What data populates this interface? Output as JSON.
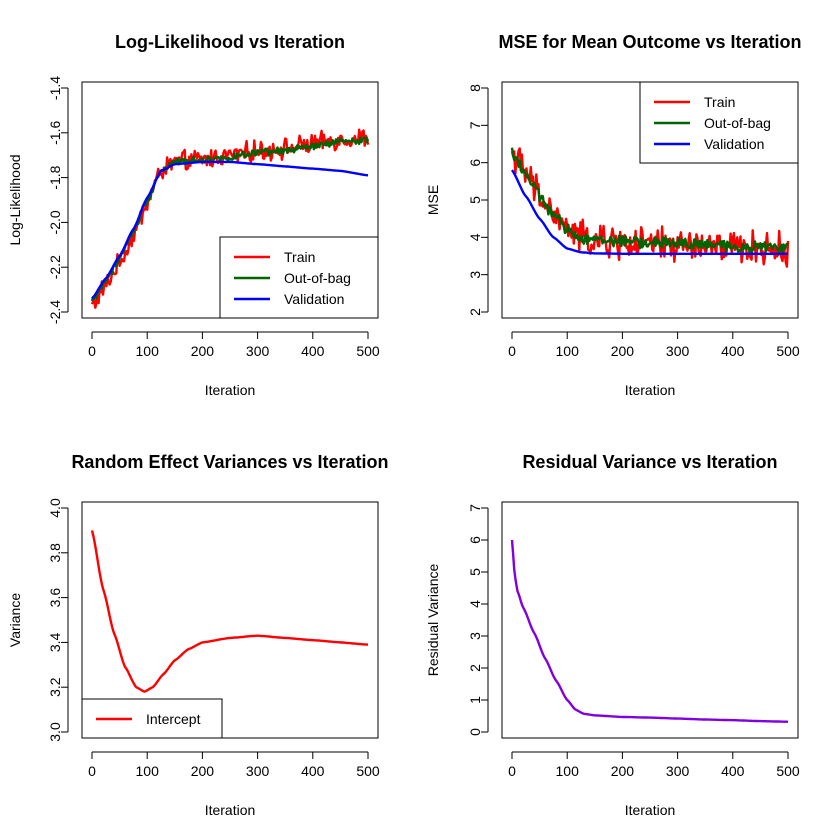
{
  "chart_data": [
    {
      "id": "loglik",
      "type": "line",
      "title": "Log-Likelihood vs Iteration",
      "xlabel": "Iteration",
      "ylabel": "Log-Likelihood",
      "xlim": [
        0,
        500
      ],
      "ylim": [
        -2.4,
        -1.4
      ],
      "xticks": [
        0,
        100,
        200,
        300,
        400,
        500
      ],
      "xtick_labels": [
        "0",
        "100",
        "200",
        "300",
        "400",
        "500"
      ],
      "yticks": [
        -2.4,
        -2.2,
        -2.0,
        -1.8,
        -1.6,
        -1.4
      ],
      "ytick_labels": [
        "-2.4",
        "-2.2",
        "-2.0",
        "-1.8",
        "-1.6",
        "-1.4"
      ],
      "legend": {
        "position": "bottom-right",
        "entries": [
          "Train",
          "Out-of-bag",
          "Validation"
        ]
      },
      "series": [
        {
          "name": "Train",
          "color": "#ff0000",
          "noisy": true,
          "noise": 0.035,
          "x": [
            0,
            25,
            50,
            75,
            100,
            125,
            150,
            200,
            250,
            300,
            350,
            400,
            450,
            500
          ],
          "y": [
            -2.37,
            -2.28,
            -2.18,
            -2.06,
            -1.91,
            -1.77,
            -1.73,
            -1.72,
            -1.7,
            -1.68,
            -1.67,
            -1.65,
            -1.63,
            -1.62
          ]
        },
        {
          "name": "Out-of-bag",
          "color": "#006400",
          "noisy": true,
          "noise": 0.012,
          "x": [
            0,
            25,
            50,
            75,
            100,
            125,
            150,
            200,
            250,
            300,
            350,
            400,
            450,
            500
          ],
          "y": [
            -2.35,
            -2.26,
            -2.16,
            -2.04,
            -1.9,
            -1.77,
            -1.73,
            -1.72,
            -1.71,
            -1.69,
            -1.68,
            -1.66,
            -1.64,
            -1.63
          ]
        },
        {
          "name": "Validation",
          "color": "#0000ff",
          "noisy": false,
          "x": [
            0,
            25,
            50,
            75,
            100,
            125,
            150,
            200,
            250,
            300,
            350,
            400,
            450,
            500
          ],
          "y": [
            -2.34,
            -2.25,
            -2.15,
            -2.03,
            -1.89,
            -1.77,
            -1.74,
            -1.73,
            -1.73,
            -1.74,
            -1.75,
            -1.76,
            -1.77,
            -1.79
          ]
        }
      ]
    },
    {
      "id": "mse",
      "type": "line",
      "title": "MSE for Mean Outcome vs Iteration",
      "xlabel": "Iteration",
      "ylabel": "MSE",
      "xlim": [
        0,
        500
      ],
      "ylim": [
        2,
        8
      ],
      "xticks": [
        0,
        100,
        200,
        300,
        400,
        500
      ],
      "xtick_labels": [
        "0",
        "100",
        "200",
        "300",
        "400",
        "500"
      ],
      "yticks": [
        2,
        3,
        4,
        5,
        6,
        7,
        8
      ],
      "ytick_labels": [
        "2",
        "3",
        "4",
        "5",
        "6",
        "7",
        "8"
      ],
      "legend": {
        "position": "top-right",
        "entries": [
          "Train",
          "Out-of-bag",
          "Validation"
        ]
      },
      "series": [
        {
          "name": "Train",
          "color": "#ff0000",
          "noisy": true,
          "noise": 0.35,
          "x": [
            0,
            25,
            50,
            75,
            100,
            125,
            150,
            200,
            250,
            300,
            350,
            400,
            450,
            500
          ],
          "y": [
            6.3,
            5.7,
            5.1,
            4.6,
            4.2,
            4.0,
            3.9,
            3.85,
            3.8,
            3.8,
            3.75,
            3.7,
            3.7,
            3.65
          ]
        },
        {
          "name": "Out-of-bag",
          "color": "#006400",
          "noisy": true,
          "noise": 0.12,
          "x": [
            0,
            25,
            50,
            75,
            100,
            125,
            150,
            200,
            250,
            300,
            350,
            400,
            450,
            500
          ],
          "y": [
            6.3,
            5.7,
            5.1,
            4.6,
            4.2,
            4.0,
            3.95,
            3.9,
            3.85,
            3.85,
            3.8,
            3.75,
            3.75,
            3.72
          ]
        },
        {
          "name": "Validation",
          "color": "#0000ff",
          "noisy": false,
          "x": [
            0,
            25,
            50,
            75,
            100,
            125,
            150,
            200,
            250,
            300,
            350,
            400,
            450,
            500
          ],
          "y": [
            5.8,
            5.1,
            4.5,
            4.0,
            3.7,
            3.6,
            3.57,
            3.56,
            3.56,
            3.56,
            3.56,
            3.56,
            3.56,
            3.56
          ]
        }
      ]
    },
    {
      "id": "revar",
      "type": "line",
      "title": "Random Effect Variances vs Iteration",
      "xlabel": "Iteration",
      "ylabel": "Variance",
      "xlim": [
        0,
        500
      ],
      "ylim": [
        3.0,
        4.0
      ],
      "xticks": [
        0,
        100,
        200,
        300,
        400,
        500
      ],
      "xtick_labels": [
        "0",
        "100",
        "200",
        "300",
        "400",
        "500"
      ],
      "yticks": [
        3.0,
        3.2,
        3.4,
        3.6,
        3.8,
        4.0
      ],
      "ytick_labels": [
        "3.0",
        "3.2",
        "3.4",
        "3.6",
        "3.8",
        "4.0"
      ],
      "legend": {
        "position": "bottom-left",
        "entries": [
          "Intercept"
        ]
      },
      "series": [
        {
          "name": "Intercept",
          "color": "#ff0000",
          "noisy": false,
          "x": [
            0,
            20,
            40,
            60,
            80,
            95,
            110,
            130,
            150,
            175,
            200,
            250,
            300,
            350,
            400,
            450,
            500
          ],
          "y": [
            3.9,
            3.64,
            3.44,
            3.29,
            3.2,
            3.18,
            3.2,
            3.26,
            3.32,
            3.37,
            3.4,
            3.42,
            3.43,
            3.42,
            3.41,
            3.4,
            3.39
          ]
        }
      ]
    },
    {
      "id": "resvar",
      "type": "line",
      "title": "Residual Variance vs Iteration",
      "xlabel": "Iteration",
      "ylabel": "Residual Variance",
      "xlim": [
        0,
        500
      ],
      "ylim": [
        0,
        7
      ],
      "xticks": [
        0,
        100,
        200,
        300,
        400,
        500
      ],
      "xtick_labels": [
        "0",
        "100",
        "200",
        "300",
        "400",
        "500"
      ],
      "yticks": [
        0,
        1,
        2,
        3,
        4,
        5,
        6,
        7
      ],
      "ytick_labels": [
        "0",
        "1",
        "2",
        "3",
        "4",
        "5",
        "6",
        "7"
      ],
      "legend": null,
      "series": [
        {
          "name": "Residual Variance",
          "color": "#8000e0",
          "noisy": false,
          "x": [
            0,
            5,
            10,
            20,
            40,
            60,
            80,
            100,
            115,
            130,
            150,
            200,
            250,
            300,
            350,
            400,
            450,
            500
          ],
          "y": [
            6.0,
            4.9,
            4.4,
            3.9,
            3.1,
            2.3,
            1.6,
            1.0,
            0.7,
            0.57,
            0.52,
            0.47,
            0.45,
            0.42,
            0.39,
            0.37,
            0.34,
            0.32
          ]
        }
      ]
    }
  ]
}
